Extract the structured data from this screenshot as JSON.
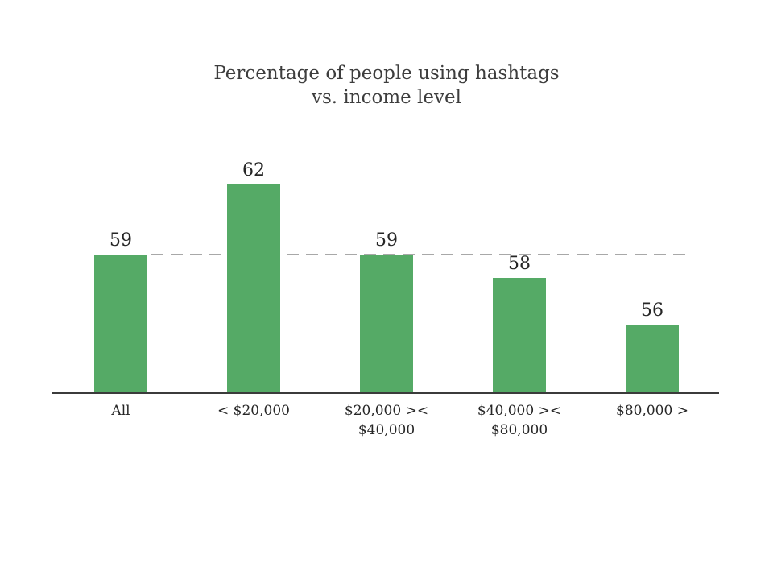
{
  "page": {
    "background_color": "#ffffff"
  },
  "chart_data": {
    "type": "bar",
    "title": "Percentage of people using hashtags vs. income level",
    "title_lines": [
      "Percentage of people using hashtags",
      "vs. income level"
    ],
    "categories": [
      "All",
      "< $20,000",
      "$20,000 >< $40,000",
      "$40,000 >< $80,000",
      "$80,000 >"
    ],
    "category_label_lines": [
      [
        "All"
      ],
      [
        "< $20,000"
      ],
      [
        "$20,000 ><",
        "$40,000"
      ],
      [
        "$40,000 ><",
        "$80,000"
      ],
      [
        "$80,000 >"
      ]
    ],
    "values": [
      59,
      62,
      59,
      58,
      56
    ],
    "xlabel": "",
    "ylabel": "",
    "ylim": [
      53,
      64
    ],
    "axis_truncated": true,
    "value_labels_shown": true,
    "grid": "off",
    "legend": "none",
    "bar_color": "#55aa66",
    "reference_line": {
      "value": 59,
      "style": "dashed",
      "color": "#a8a8a8"
    },
    "axis_line_color": "#3b3b3b",
    "title_color": "#3d3d3d",
    "label_color": "#262626"
  }
}
